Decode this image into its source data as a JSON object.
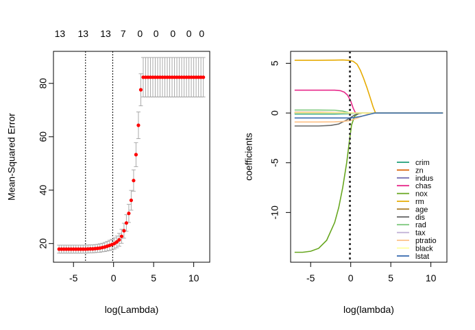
{
  "chart_data": [
    {
      "type": "scatter",
      "xlabel": "log(Lambda)",
      "ylabel": "Mean-Squared Error",
      "xlim": [
        -7.5,
        12
      ],
      "ylim": [
        13,
        92
      ],
      "xticks": [
        -5,
        0,
        5,
        10
      ],
      "yticks": [
        20,
        40,
        60,
        80
      ],
      "top_counts": [
        {
          "x": -6.7,
          "label": "13"
        },
        {
          "x": -3.8,
          "label": "13"
        },
        {
          "x": -1.0,
          "label": "13"
        },
        {
          "x": 1.2,
          "label": "7"
        },
        {
          "x": 3.3,
          "label": "0"
        },
        {
          "x": 5.3,
          "label": "0"
        },
        {
          "x": 7.4,
          "label": "0"
        },
        {
          "x": 9.4,
          "label": "0"
        },
        {
          "x": 11.0,
          "label": "0"
        }
      ],
      "vlines": [
        -3.5,
        -0.1
      ],
      "points": [
        {
          "x": -6.8,
          "y": 17.9,
          "err": 1.5
        },
        {
          "x": -6.5,
          "y": 17.9,
          "err": 1.5
        },
        {
          "x": -6.2,
          "y": 17.9,
          "err": 1.5
        },
        {
          "x": -5.9,
          "y": 17.9,
          "err": 1.5
        },
        {
          "x": -5.6,
          "y": 17.9,
          "err": 1.5
        },
        {
          "x": -5.3,
          "y": 17.9,
          "err": 1.5
        },
        {
          "x": -5.0,
          "y": 17.9,
          "err": 1.5
        },
        {
          "x": -4.7,
          "y": 17.9,
          "err": 1.5
        },
        {
          "x": -4.4,
          "y": 17.9,
          "err": 1.5
        },
        {
          "x": -4.1,
          "y": 17.9,
          "err": 1.5
        },
        {
          "x": -3.8,
          "y": 17.9,
          "err": 1.5
        },
        {
          "x": -3.5,
          "y": 17.9,
          "err": 1.5
        },
        {
          "x": -3.2,
          "y": 17.95,
          "err": 1.5
        },
        {
          "x": -2.9,
          "y": 18.0,
          "err": 1.5
        },
        {
          "x": -2.6,
          "y": 18.0,
          "err": 1.5
        },
        {
          "x": -2.3,
          "y": 18.1,
          "err": 1.5
        },
        {
          "x": -2.0,
          "y": 18.2,
          "err": 1.5
        },
        {
          "x": -1.7,
          "y": 18.3,
          "err": 1.6
        },
        {
          "x": -1.4,
          "y": 18.5,
          "err": 1.6
        },
        {
          "x": -1.1,
          "y": 18.7,
          "err": 1.7
        },
        {
          "x": -0.8,
          "y": 19.0,
          "err": 1.8
        },
        {
          "x": -0.5,
          "y": 19.3,
          "err": 1.9
        },
        {
          "x": -0.2,
          "y": 19.6,
          "err": 2.0
        },
        {
          "x": 0.1,
          "y": 20.0,
          "err": 2.1
        },
        {
          "x": 0.4,
          "y": 20.6,
          "err": 2.2
        },
        {
          "x": 0.7,
          "y": 21.4,
          "err": 2.4
        },
        {
          "x": 1.0,
          "y": 22.7,
          "err": 2.6
        },
        {
          "x": 1.3,
          "y": 24.8,
          "err": 2.8
        },
        {
          "x": 1.6,
          "y": 27.7,
          "err": 3.1
        },
        {
          "x": 1.9,
          "y": 31.3,
          "err": 3.4
        },
        {
          "x": 2.2,
          "y": 36.2,
          "err": 3.7
        },
        {
          "x": 2.5,
          "y": 43.6,
          "err": 4.0
        },
        {
          "x": 2.8,
          "y": 53.3,
          "err": 4.5
        },
        {
          "x": 3.1,
          "y": 64.3,
          "err": 5.0
        },
        {
          "x": 3.4,
          "y": 77.6,
          "err": 6.0
        },
        {
          "x": 3.7,
          "y": 82.3,
          "err": 7.4
        },
        {
          "x": 4.0,
          "y": 82.3,
          "err": 7.4
        },
        {
          "x": 4.3,
          "y": 82.3,
          "err": 7.4
        },
        {
          "x": 4.6,
          "y": 82.3,
          "err": 7.4
        },
        {
          "x": 4.9,
          "y": 82.3,
          "err": 7.4
        },
        {
          "x": 5.2,
          "y": 82.3,
          "err": 7.4
        },
        {
          "x": 5.5,
          "y": 82.3,
          "err": 7.4
        },
        {
          "x": 5.8,
          "y": 82.3,
          "err": 7.4
        },
        {
          "x": 6.1,
          "y": 82.3,
          "err": 7.4
        },
        {
          "x": 6.4,
          "y": 82.3,
          "err": 7.4
        },
        {
          "x": 6.7,
          "y": 82.3,
          "err": 7.4
        },
        {
          "x": 7.0,
          "y": 82.3,
          "err": 7.4
        },
        {
          "x": 7.3,
          "y": 82.3,
          "err": 7.4
        },
        {
          "x": 7.6,
          "y": 82.3,
          "err": 7.4
        },
        {
          "x": 7.9,
          "y": 82.3,
          "err": 7.4
        },
        {
          "x": 8.2,
          "y": 82.3,
          "err": 7.4
        },
        {
          "x": 8.5,
          "y": 82.3,
          "err": 7.4
        },
        {
          "x": 8.8,
          "y": 82.3,
          "err": 7.4
        },
        {
          "x": 9.1,
          "y": 82.3,
          "err": 7.4
        },
        {
          "x": 9.4,
          "y": 82.3,
          "err": 7.4
        },
        {
          "x": 9.7,
          "y": 82.3,
          "err": 7.4
        },
        {
          "x": 10.0,
          "y": 82.3,
          "err": 7.4
        },
        {
          "x": 10.3,
          "y": 82.3,
          "err": 7.4
        },
        {
          "x": 10.6,
          "y": 82.3,
          "err": 7.4
        },
        {
          "x": 10.9,
          "y": 82.3,
          "err": 7.4
        },
        {
          "x": 11.2,
          "y": 82.3,
          "err": 7.4
        }
      ],
      "point_color": "#ff0000",
      "errorbar_color": "#a9a9a9"
    },
    {
      "type": "line",
      "xlabel": "log(lambda)",
      "ylabel": "coefficients",
      "xlim": [
        -7.5,
        12
      ],
      "ylim": [
        -15,
        6.2
      ],
      "xticks": [
        -5,
        0,
        5,
        10
      ],
      "yticks": [
        5,
        0,
        -5,
        -10
      ],
      "ytick_labels": [
        "5",
        "0",
        "-5",
        "-10"
      ],
      "vline": -0.1,
      "vline_color": "#404040",
      "legend_position": "bottom-right",
      "series": [
        {
          "name": "crim",
          "color": "#1b9e77",
          "x": [
            -7,
            -4,
            -2,
            -0.5,
            0.5,
            1.5,
            2.5,
            3,
            11.5
          ],
          "y": [
            -0.1,
            -0.1,
            -0.09,
            -0.07,
            -0.03,
            -0.01,
            0,
            0,
            0
          ]
        },
        {
          "name": "zn",
          "color": "#d95f02",
          "x": [
            -7,
            -4,
            -2,
            -0.5,
            0.5,
            1.5,
            2.5,
            3,
            11.5
          ],
          "y": [
            0.05,
            0.05,
            0.04,
            0.03,
            0.01,
            0,
            0,
            0,
            0
          ]
        },
        {
          "name": "indus",
          "color": "#7570b3",
          "x": [
            -7,
            -4,
            -2,
            -0.5,
            0.5,
            1.5,
            2.5,
            3,
            11.5
          ],
          "y": [
            0.02,
            0.02,
            0.01,
            0,
            0,
            0,
            0,
            0,
            0
          ]
        },
        {
          "name": "chas",
          "color": "#e7298a",
          "x": [
            -7,
            -4,
            -2,
            -1.3,
            -0.8,
            -0.4,
            0,
            0.3,
            0.6
          ],
          "y": [
            2.3,
            2.3,
            2.3,
            2.25,
            2.1,
            1.8,
            1.2,
            0.5,
            0
          ]
        },
        {
          "name": "nox",
          "color": "#66a61e",
          "x": [
            -7,
            -6,
            -5,
            -4,
            -3,
            -2,
            -1.5,
            -1,
            -0.5,
            -0.2,
            0.1,
            0.5,
            1.0,
            1.5
          ],
          "y": [
            -14,
            -14,
            -13.9,
            -13.6,
            -12.8,
            -11.0,
            -9.5,
            -7.5,
            -5.0,
            -3.0,
            -1.2,
            -0.3,
            -0.05,
            0
          ]
        },
        {
          "name": "rm",
          "color": "#e6ab02",
          "x": [
            -7,
            -4,
            -2,
            -1,
            -0.3,
            0.3,
            0.8,
            1.2,
            1.6,
            2.0,
            2.4,
            2.8,
            3.1,
            11.5
          ],
          "y": [
            5.3,
            5.3,
            5.32,
            5.33,
            5.3,
            5.2,
            4.9,
            4.3,
            3.5,
            2.6,
            1.6,
            0.6,
            0,
            0
          ]
        },
        {
          "name": "age",
          "color": "#a6761d",
          "x": [
            -7,
            -4,
            -2,
            -0.5,
            0.5,
            1.5,
            2.5,
            3,
            11.5
          ],
          "y": [
            0.0,
            0.0,
            0.0,
            0.0,
            0,
            0,
            0,
            0,
            0
          ]
        },
        {
          "name": "dis",
          "color": "#666666",
          "x": [
            -7,
            -4,
            -2.5,
            -1.5,
            -0.5,
            0,
            0.5,
            1.0,
            1.5
          ],
          "y": [
            -1.3,
            -1.3,
            -1.25,
            -1.1,
            -0.7,
            -0.45,
            -0.2,
            -0.05,
            0
          ]
        },
        {
          "name": "rad",
          "color": "#7fc97f",
          "x": [
            -7,
            -4,
            -2,
            -1,
            -0.3
          ],
          "y": [
            0.3,
            0.3,
            0.28,
            0.2,
            0.05
          ]
        },
        {
          "name": "tax",
          "color": "#beaed4",
          "x": [
            -7,
            -4,
            -2,
            -0.5,
            0,
            0.5
          ],
          "y": [
            -0.01,
            -0.01,
            -0.01,
            -0.01,
            0,
            0
          ]
        },
        {
          "name": "ptratio",
          "color": "#fdc086",
          "x": [
            -7,
            -4,
            -2,
            -1,
            0,
            0.5,
            1.0,
            1.5,
            2.0,
            2.5
          ],
          "y": [
            -0.9,
            -0.9,
            -0.88,
            -0.85,
            -0.75,
            -0.6,
            -0.45,
            -0.3,
            -0.15,
            0
          ]
        },
        {
          "name": "black",
          "color": "#ffff99",
          "x": [
            -7,
            -4,
            -2,
            -0.5,
            0.5,
            1.5,
            2.5,
            3,
            11.5
          ],
          "y": [
            0.01,
            0.01,
            0.01,
            0.01,
            0,
            0,
            0,
            0,
            0
          ]
        },
        {
          "name": "lstat",
          "color": "#386cb0",
          "x": [
            -7,
            -4,
            -2,
            -1,
            0,
            0.5,
            1.0,
            1.5,
            2.0,
            2.5,
            3.0,
            11.5
          ],
          "y": [
            -0.5,
            -0.5,
            -0.5,
            -0.5,
            -0.5,
            -0.45,
            -0.38,
            -0.3,
            -0.2,
            -0.1,
            0,
            0
          ]
        }
      ]
    }
  ]
}
